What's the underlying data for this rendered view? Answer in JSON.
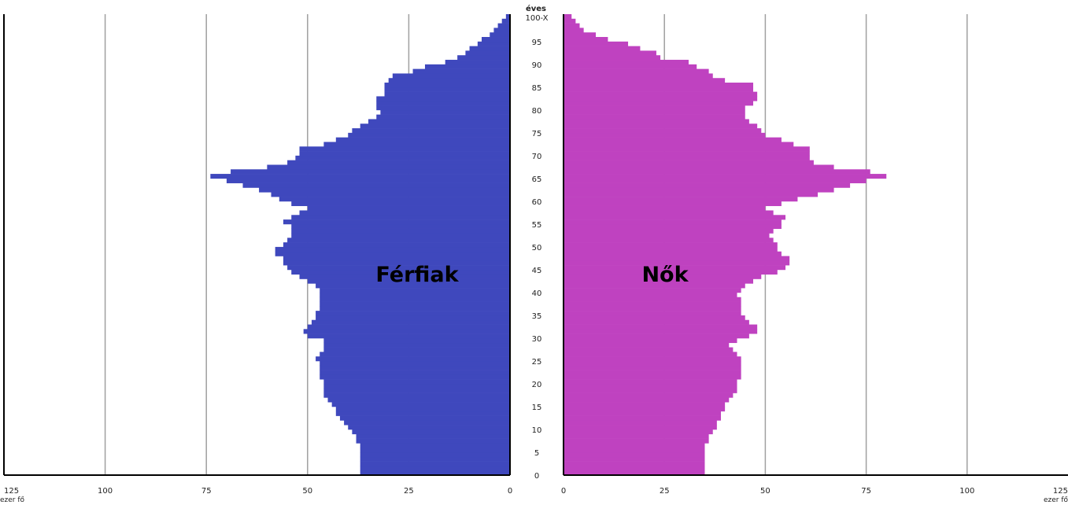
{
  "chart_data": {
    "type": "bar",
    "orientation": "horizontal",
    "title": "",
    "age_axis_title": "éves",
    "age_tick_labels": [
      "0",
      "5",
      "10",
      "15",
      "20",
      "25",
      "30",
      "35",
      "40",
      "45",
      "50",
      "55",
      "60",
      "65",
      "70",
      "75",
      "80",
      "85",
      "90",
      "95",
      "100-X"
    ],
    "x_ticks": [
      "125",
      "100",
      "75",
      "50",
      "25",
      "0"
    ],
    "x_range": [
      0,
      125
    ],
    "x_unit": "ezer fő",
    "grid": true,
    "categories": [
      "0",
      "1",
      "2",
      "3",
      "4",
      "5",
      "6",
      "7",
      "8",
      "9",
      "10",
      "11",
      "12",
      "13",
      "14",
      "15",
      "16",
      "17",
      "18",
      "19",
      "20",
      "21",
      "22",
      "23",
      "24",
      "25",
      "26",
      "27",
      "28",
      "29",
      "30",
      "31",
      "32",
      "33",
      "34",
      "35",
      "36",
      "37",
      "38",
      "39",
      "40",
      "41",
      "42",
      "43",
      "44",
      "45",
      "46",
      "47",
      "48",
      "49",
      "50",
      "51",
      "52",
      "53",
      "54",
      "55",
      "56",
      "57",
      "58",
      "59",
      "60",
      "61",
      "62",
      "63",
      "64",
      "65",
      "66",
      "67",
      "68",
      "69",
      "70",
      "71",
      "72",
      "73",
      "74",
      "75",
      "76",
      "77",
      "78",
      "79",
      "80",
      "81",
      "82",
      "83",
      "84",
      "85",
      "86",
      "87",
      "88",
      "89",
      "90",
      "91",
      "92",
      "93",
      "94",
      "95",
      "96",
      "97",
      "98",
      "99",
      "100-X"
    ],
    "series": [
      {
        "name": "Férfiak",
        "color": "#3f48bd",
        "values": [
          37,
          37,
          37,
          37,
          37,
          37,
          37,
          38,
          38,
          39,
          40,
          41,
          42,
          43,
          43,
          44,
          45,
          46,
          46,
          46,
          46,
          47,
          47,
          47,
          47,
          48,
          47,
          46,
          46,
          46,
          50,
          51,
          50,
          49,
          48,
          48,
          47,
          47,
          47,
          47,
          47,
          48,
          50,
          52,
          54,
          55,
          56,
          56,
          58,
          58,
          56,
          55,
          54,
          54,
          54,
          56,
          54,
          52,
          50,
          54,
          57,
          59,
          62,
          66,
          70,
          74,
          69,
          60,
          55,
          53,
          52,
          52,
          46,
          43,
          40,
          39,
          37,
          35,
          33,
          32,
          33,
          33,
          33,
          31,
          31,
          31,
          30,
          29,
          24,
          21,
          16,
          13,
          11,
          10,
          8,
          7,
          5,
          4,
          3,
          2,
          1
        ],
        "highlight_label": "Férfiak"
      },
      {
        "name": "Nők",
        "color": "#bf42c0",
        "values": [
          35,
          35,
          35,
          35,
          35,
          35,
          35,
          36,
          36,
          37,
          38,
          38,
          39,
          39,
          40,
          40,
          41,
          42,
          43,
          43,
          43,
          44,
          44,
          44,
          44,
          44,
          43,
          42,
          41,
          43,
          46,
          48,
          48,
          46,
          45,
          44,
          44,
          44,
          44,
          43,
          44,
          45,
          47,
          49,
          53,
          55,
          56,
          56,
          54,
          53,
          53,
          52,
          51,
          52,
          54,
          54,
          55,
          52,
          50,
          54,
          58,
          63,
          67,
          71,
          75,
          80,
          76,
          67,
          62,
          61,
          61,
          61,
          57,
          54,
          50,
          49,
          48,
          46,
          45,
          45,
          45,
          47,
          48,
          48,
          47,
          47,
          40,
          37,
          36,
          33,
          31,
          24,
          23,
          19,
          16,
          11,
          8,
          5,
          4,
          3,
          2
        ],
        "highlight_label": "Nők"
      }
    ]
  }
}
